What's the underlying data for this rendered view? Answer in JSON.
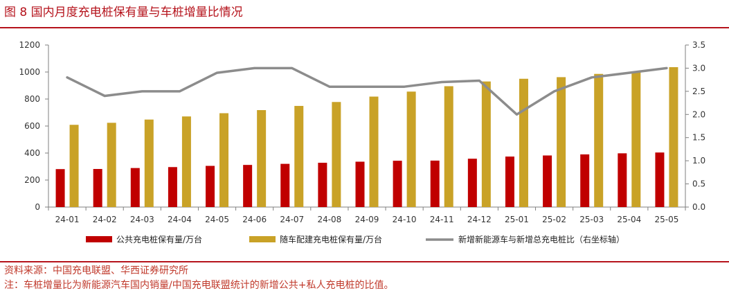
{
  "figure": {
    "title": "图 8 国内月度充电桩保有量与车桩增量比情况",
    "source": "资料来源：中国充电联盟、华西证券研究所",
    "note": "注：车桩增量比为新能源汽车国内销量/中国充电联盟统计的新增公共+私人充电桩的比值。"
  },
  "colors": {
    "accent": "#b5121b",
    "public": "#c00000",
    "private": "#c9a227",
    "ratio": "#8c8c8c",
    "axis": "#7f7f7f"
  },
  "chart_data": {
    "type": "bar",
    "categories": [
      "24-01",
      "24-02",
      "24-03",
      "24-04",
      "24-05",
      "24-06",
      "24-07",
      "24-08",
      "24-09",
      "24-10",
      "24-11",
      "24-12",
      "25-01",
      "25-02",
      "25-03",
      "25-04",
      "25-05"
    ],
    "series": [
      {
        "name": "公共充电桩保有量/万台",
        "type": "bar",
        "axis": "left",
        "values": [
          281,
          282,
          289,
          296,
          305,
          312,
          320,
          328,
          336,
          343,
          344,
          358,
          374,
          382,
          390,
          398,
          404
        ]
      },
      {
        "name": "随车配建充电桩保有量/万台",
        "type": "bar",
        "axis": "left",
        "values": [
          609,
          624,
          648,
          671,
          695,
          718,
          749,
          778,
          818,
          855,
          895,
          930,
          950,
          962,
          986,
          1004,
          1036
        ]
      },
      {
        "name": "新增新能源车与新增总充电桩比（右坐标轴）",
        "type": "line",
        "axis": "right",
        "values": [
          2.8,
          2.4,
          2.5,
          2.5,
          2.9,
          3.0,
          3.0,
          2.6,
          2.6,
          2.6,
          2.7,
          2.73,
          2.0,
          2.5,
          2.8,
          2.9,
          3.0
        ]
      }
    ],
    "yleft": {
      "lim": [
        0,
        1200
      ],
      "ticks": [
        "0",
        "200",
        "400",
        "600",
        "800",
        "1000",
        "1200"
      ]
    },
    "yright": {
      "lim": [
        0,
        3.5
      ],
      "ticks": [
        "0.0",
        "0.5",
        "1.0",
        "1.5",
        "2.0",
        "2.5",
        "3.0",
        "3.5"
      ]
    },
    "grid": false,
    "legend_position": "bottom"
  }
}
